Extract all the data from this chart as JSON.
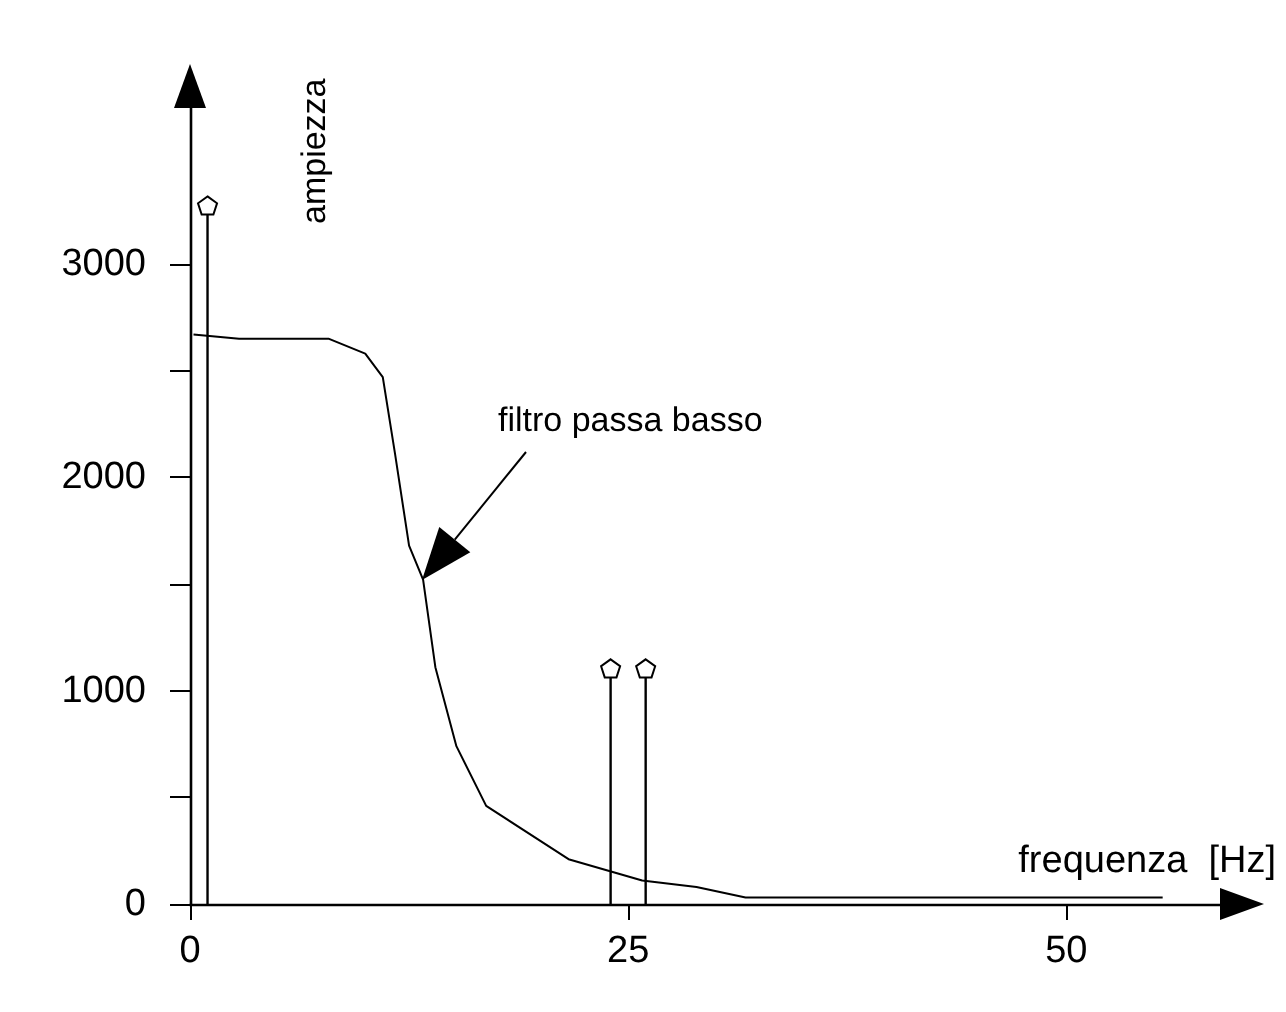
{
  "chart_data": {
    "type": "line",
    "xlabel": "frequenza  [Hz]",
    "ylabel": "ampiezza",
    "xlim": [
      0,
      59
    ],
    "xticks": [
      0,
      25,
      50
    ],
    "ylim": [
      0,
      3750
    ],
    "yticks": [
      0,
      {
        "value": 500,
        "label": null
      },
      1000,
      {
        "value": 1500,
        "label": null
      },
      2000,
      {
        "value": 2500,
        "label": null
      },
      3000
    ],
    "grid": false,
    "marker": "none",
    "series": [
      {
        "color": "#000000",
        "x": [
          0.2,
          2.8,
          7.9,
          10.0,
          11.0,
          11.7,
          12.5,
          13.3,
          14.0,
          15.2,
          16.9,
          21.6,
          25.8,
          28.9,
          31.7,
          55.5
        ],
        "values": [
          2670,
          2650,
          2650,
          2580,
          2470,
          2110,
          1680,
          1520,
          1110,
          740,
          460,
          210,
          110,
          80,
          30,
          30
        ]
      },
      {
        "type": "lollipop",
        "color": "#000000",
        "x": [
          1,
          24,
          26
        ],
        "values": [
          3270,
          1100,
          1100
        ]
      }
    ],
    "annotations": [
      "filtro passa basso"
    ]
  }
}
